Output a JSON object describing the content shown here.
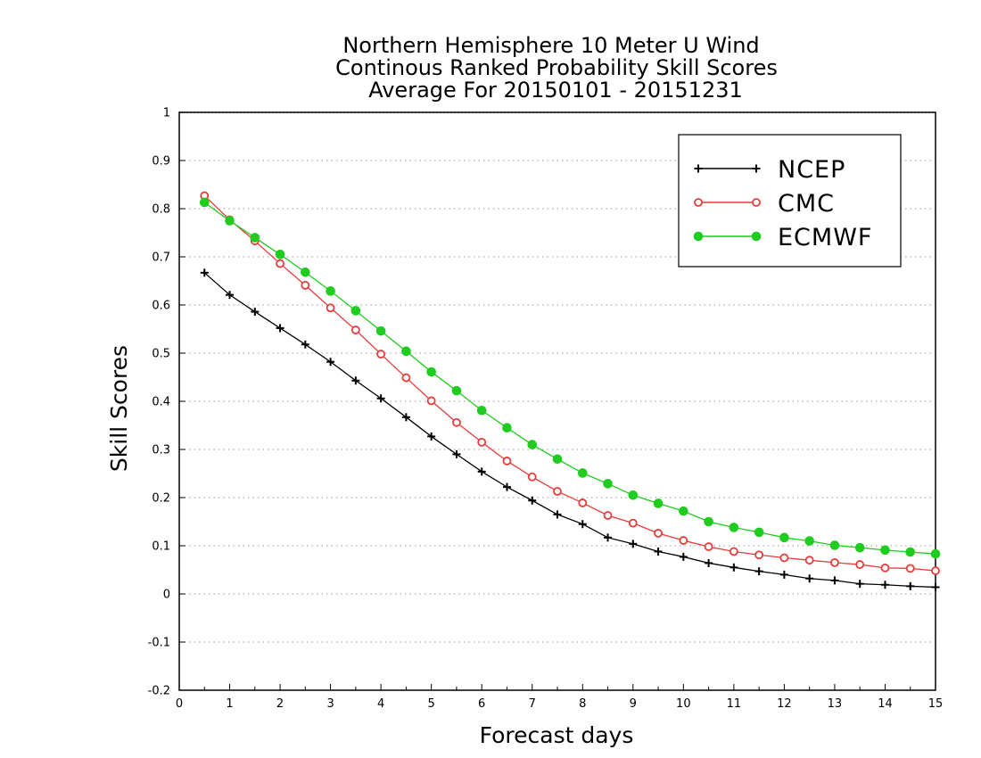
{
  "chart_data": {
    "type": "line",
    "title_lines": [
      "Northern Hemisphere 10 Meter U Wind",
      "Continous Ranked Probability Skill Scores",
      "Average For 20150101 - 20151231"
    ],
    "xlabel": "Forecast days",
    "ylabel": "Skill Scores",
    "xlim": [
      0,
      15
    ],
    "ylim": [
      -0.2,
      1
    ],
    "x_ticks": [
      0,
      1,
      2,
      3,
      4,
      5,
      6,
      7,
      8,
      9,
      10,
      11,
      12,
      13,
      14,
      15
    ],
    "y_ticks": [
      -0.2,
      -0.1,
      0,
      0.1,
      0.2,
      0.3,
      0.4,
      0.5,
      0.6,
      0.7,
      0.8,
      0.9,
      1
    ],
    "y_tick_labels": [
      "-0.2",
      "-0.1",
      "0",
      "0.1",
      "0.2",
      "0.3",
      "0.4",
      "0.5",
      "0.6",
      "0.7",
      "0.8",
      "0.9",
      "1"
    ],
    "grid": "horizontal dotted",
    "legend_position": "top-right",
    "x": [
      0.5,
      1,
      1.5,
      2,
      2.5,
      3,
      3.5,
      4,
      4.5,
      5,
      5.5,
      6,
      6.5,
      7,
      7.5,
      8,
      8.5,
      9,
      9.5,
      10,
      10.5,
      11,
      11.5,
      12,
      12.5,
      13,
      13.5,
      14,
      14.5,
      15
    ],
    "series": [
      {
        "name": "NCEP",
        "color": "#000000",
        "marker": "plus",
        "values": [
          0.667,
          0.621,
          0.586,
          0.552,
          0.518,
          0.482,
          0.443,
          0.406,
          0.367,
          0.327,
          0.29,
          0.254,
          0.222,
          0.194,
          0.165,
          0.145,
          0.117,
          0.104,
          0.088,
          0.077,
          0.064,
          0.055,
          0.047,
          0.04,
          0.032,
          0.028,
          0.021,
          0.019,
          0.016,
          0.014
        ]
      },
      {
        "name": "CMC",
        "color": "#e53c3c",
        "marker": "open-circle",
        "values": [
          0.827,
          0.777,
          0.733,
          0.686,
          0.641,
          0.594,
          0.548,
          0.498,
          0.449,
          0.401,
          0.356,
          0.315,
          0.276,
          0.243,
          0.213,
          0.189,
          0.163,
          0.147,
          0.126,
          0.111,
          0.098,
          0.088,
          0.081,
          0.075,
          0.07,
          0.065,
          0.061,
          0.054,
          0.053,
          0.048
        ]
      },
      {
        "name": "ECMWF",
        "color": "#1fcc1f",
        "marker": "filled-circle",
        "values": [
          0.813,
          0.775,
          0.74,
          0.705,
          0.668,
          0.629,
          0.588,
          0.546,
          0.504,
          0.461,
          0.422,
          0.381,
          0.345,
          0.31,
          0.28,
          0.251,
          0.229,
          0.205,
          0.188,
          0.172,
          0.15,
          0.138,
          0.128,
          0.117,
          0.11,
          0.101,
          0.096,
          0.091,
          0.087,
          0.083
        ]
      }
    ]
  }
}
